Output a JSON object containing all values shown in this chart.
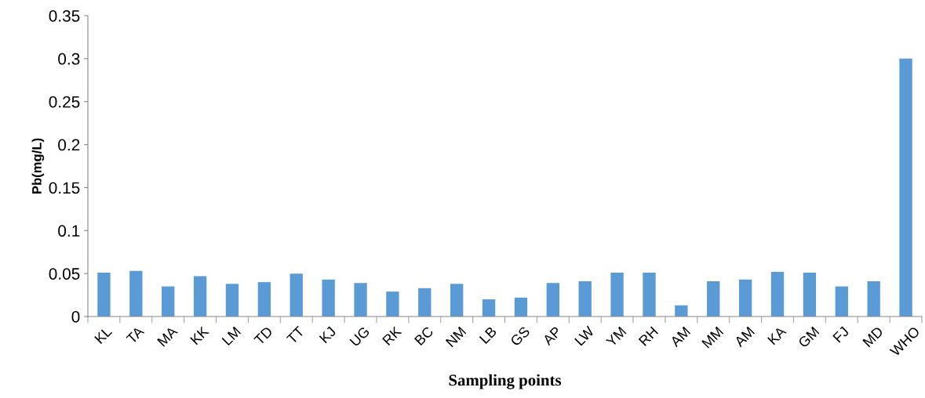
{
  "chart_data": {
    "type": "bar",
    "xlabel": "Sampling points",
    "ylabel": "Pb(mg/L)",
    "categories": [
      "KL",
      "TA",
      "MA",
      "KK",
      "LM",
      "TD",
      "TT",
      "KJ",
      "UG",
      "RK",
      "BC",
      "NM",
      "LB",
      "GS",
      "AP",
      "LW",
      "YM",
      "RH",
      "AM",
      "MM",
      "AM",
      "KA",
      "GM",
      "FJ",
      "MD",
      "WHO"
    ],
    "values": [
      0.051,
      0.053,
      0.035,
      0.047,
      0.038,
      0.04,
      0.05,
      0.043,
      0.039,
      0.029,
      0.033,
      0.038,
      0.02,
      0.022,
      0.039,
      0.041,
      0.051,
      0.051,
      0.013,
      0.041,
      0.043,
      0.052,
      0.051,
      0.035,
      0.041,
      0.3
    ],
    "color": "#5b9bd5",
    "ylim": [
      0,
      0.35
    ],
    "yticks": [
      {
        "value": 0,
        "label": "0"
      },
      0.05,
      {
        "value": 0.1,
        "label": "0.1"
      },
      0.15,
      {
        "value": 0.2,
        "label": "0.2"
      },
      0.25,
      {
        "value": 0.3,
        "label": "0.3"
      },
      0.35
    ],
    "grid": false,
    "legend": false
  }
}
